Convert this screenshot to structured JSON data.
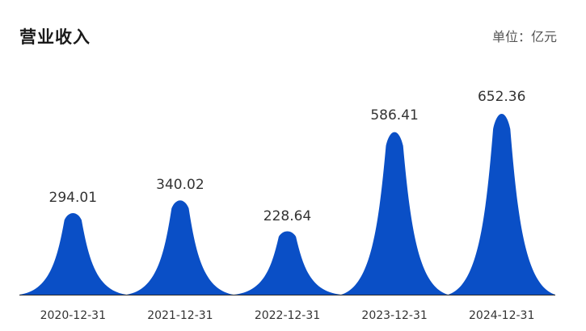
{
  "header": {
    "title": "营业收入",
    "unit": "单位：亿元"
  },
  "colors": {
    "peak_fill": "#0a4fc6",
    "baseline": "#2b2b2b"
  },
  "chart_data": {
    "type": "area",
    "title": "营业收入",
    "unit_label": "单位：亿元",
    "categories": [
      "2020-12-31",
      "2021-12-31",
      "2022-12-31",
      "2023-12-31",
      "2024-12-31"
    ],
    "values": [
      294.01,
      340.02,
      228.64,
      586.41,
      652.36
    ],
    "value_labels": [
      "294.01",
      "340.02",
      "228.64",
      "586.41",
      "652.36"
    ],
    "ylim": [
      0,
      652.36
    ],
    "grid": false,
    "legend": "none"
  }
}
